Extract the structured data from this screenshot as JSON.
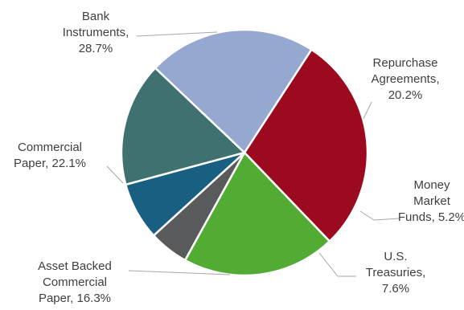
{
  "chart_data": {
    "type": "pie",
    "title": "",
    "slices": [
      {
        "label": "Bank Instruments",
        "pct_text": "28.7%",
        "value": 28.7,
        "color": "#9b0a1f"
      },
      {
        "label": "Repurchase Agreements",
        "pct_text": "20.2%",
        "value": 20.2,
        "color": "#52ab32"
      },
      {
        "label": "Money Market Funds",
        "pct_text": "5.2%",
        "value": 5.2,
        "color": "#585a5c"
      },
      {
        "label": "U.S. Treasuries",
        "pct_text": "7.6%",
        "value": 7.6,
        "color": "#185f82"
      },
      {
        "label": "Asset Backed Commercial Paper",
        "pct_text": "16.3%",
        "value": 16.3,
        "color": "#3f7171"
      },
      {
        "label": "Commercial Paper",
        "pct_text": "22.1%",
        "value": 22.1,
        "color": "#95a8cf"
      }
    ],
    "data_labels": [
      {
        "lines": [
          "Bank",
          "Instruments,",
          "28.7%"
        ]
      },
      {
        "lines": [
          "Repurchase",
          "Agreements,",
          "20.2%"
        ]
      },
      {
        "lines": [
          "Money",
          "Market",
          "Funds, 5.2%"
        ]
      },
      {
        "lines": [
          "U.S.",
          "Treasuries,",
          "7.6%"
        ]
      },
      {
        "lines": [
          "Asset Backed",
          "Commercial",
          "Paper, 16.3%"
        ]
      },
      {
        "lines": [
          "Commercial",
          "Paper, 22.1%"
        ]
      }
    ]
  }
}
